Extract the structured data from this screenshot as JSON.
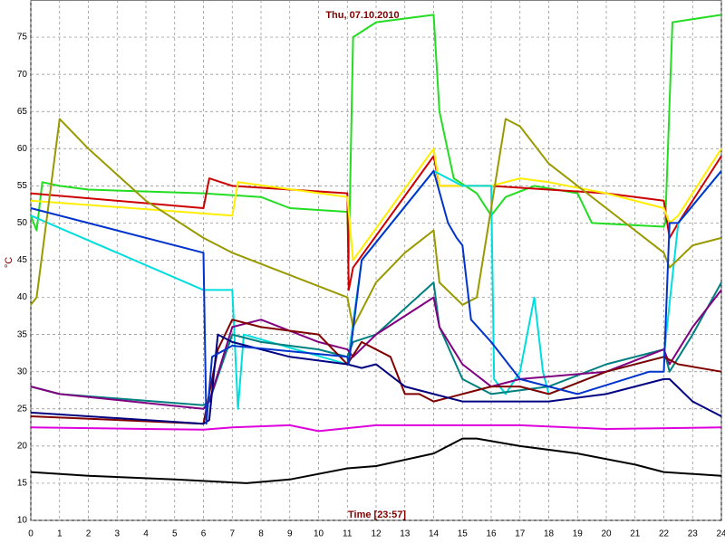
{
  "chart_data": {
    "type": "line",
    "title": "Thu, 07.10.2010",
    "x_label": "Time [23:57]",
    "y_label": "°C",
    "xlim": [
      0,
      24
    ],
    "xticks": [
      0,
      1,
      2,
      3,
      4,
      5,
      6,
      7,
      8,
      9,
      10,
      11,
      12,
      13,
      14,
      15,
      16,
      17,
      18,
      19,
      20,
      21,
      22,
      23,
      24
    ],
    "ylim": [
      10,
      80
    ],
    "yticks": [
      10,
      15,
      20,
      25,
      30,
      35,
      40,
      45,
      50,
      55,
      60,
      65,
      70,
      75
    ],
    "grid": true,
    "series": [
      {
        "color": "#22dd22",
        "x": [
          0,
          0.2,
          0.4,
          1,
          2,
          6,
          8,
          9,
          11,
          11.05,
          11.2,
          12,
          14,
          14.2,
          14.7,
          15.5,
          16,
          16.5,
          17.5,
          19,
          19.5,
          22,
          22.05,
          22.3,
          24
        ],
        "values": [
          51,
          49,
          55.5,
          55,
          54.5,
          54,
          53.5,
          52,
          51.5,
          45,
          75,
          77,
          78,
          65,
          56,
          54,
          51,
          53.5,
          55,
          54,
          50,
          49.5,
          50,
          77,
          78
        ]
      },
      {
        "color": "#cc0000",
        "x": [
          0,
          6,
          6.2,
          7,
          11,
          11.05,
          11.2,
          14,
          14.2,
          15,
          16,
          20,
          22,
          22.2,
          22.5,
          24
        ],
        "values": [
          54,
          52,
          56,
          55,
          54,
          41,
          44,
          59,
          55,
          55,
          55,
          54,
          53,
          48,
          50,
          59
        ]
      },
      {
        "color": "#ffee00",
        "x": [
          0,
          7,
          7.2,
          11,
          11.2,
          14,
          14.2,
          16,
          17,
          18,
          20,
          22,
          22.2,
          22.5,
          24
        ],
        "values": [
          53,
          51,
          55.5,
          53.5,
          45,
          60,
          55,
          55,
          56,
          55.5,
          54,
          52,
          50,
          51,
          60
        ]
      },
      {
        "color": "#00dddd",
        "x": [
          0,
          6,
          7,
          7.2,
          7.4,
          11,
          11.5,
          14,
          15,
          16,
          16.1,
          16.5,
          17,
          17.5,
          17.8,
          18,
          20,
          22,
          22.5,
          24
        ],
        "values": [
          51,
          41,
          41,
          25,
          35,
          31,
          45,
          57,
          55,
          55,
          29,
          27,
          30,
          40,
          30,
          27,
          30,
          32,
          50,
          57
        ]
      },
      {
        "color": "#999900",
        "x": [
          0,
          0.2,
          1,
          2,
          4,
          6,
          7,
          9,
          11,
          11.2,
          12,
          13,
          14,
          14.2,
          15,
          15.5,
          16,
          16.5,
          17,
          18,
          20,
          22,
          22.2,
          23,
          24
        ],
        "values": [
          39,
          40,
          64,
          60,
          53,
          48,
          46,
          43,
          40,
          36,
          42,
          46,
          49,
          42,
          39,
          40,
          52,
          64,
          63,
          58,
          52,
          46,
          44,
          47,
          48
        ]
      },
      {
        "color": "#008080",
        "x": [
          0,
          1,
          6,
          6.2,
          7,
          8,
          10,
          11,
          11.2,
          12,
          14,
          14.2,
          15,
          16,
          18,
          20,
          22,
          22.2,
          23,
          24
        ],
        "values": [
          28,
          27,
          25.5,
          26,
          35,
          34,
          33,
          32,
          34,
          35,
          42,
          36,
          29,
          27,
          28,
          31,
          33,
          30,
          35,
          42
        ]
      },
      {
        "color": "#800080",
        "x": [
          0,
          1,
          6,
          6.2,
          7,
          8,
          10,
          11,
          11.2,
          12,
          14,
          14.2,
          15,
          16,
          17,
          20,
          22,
          22.2,
          23,
          24
        ],
        "values": [
          28,
          27,
          25,
          26,
          36,
          37,
          34,
          33,
          32,
          35,
          40,
          36,
          31,
          28,
          29,
          30,
          33,
          31,
          36,
          41
        ]
      },
      {
        "color": "#800000",
        "x": [
          0,
          6,
          6.5,
          7,
          8,
          10,
          11,
          11.5,
          12.5,
          13,
          13.5,
          14,
          15,
          16,
          17,
          18,
          20,
          22,
          22.5,
          24
        ],
        "values": [
          24,
          23,
          33,
          37,
          36,
          35,
          31,
          34,
          32,
          27,
          27,
          26,
          27,
          28,
          28,
          27,
          30,
          32,
          31,
          30
        ]
      },
      {
        "color": "#000080",
        "x": [
          0,
          6,
          6.2,
          6.5,
          7,
          9,
          11,
          11.5,
          12,
          13,
          14,
          15,
          16,
          18,
          20,
          22,
          22.2,
          23,
          24
        ],
        "values": [
          24.5,
          23,
          23.5,
          35,
          34,
          32,
          31,
          30.5,
          31,
          28,
          27,
          26,
          26,
          26,
          27,
          29,
          29,
          26,
          24
        ]
      },
      {
        "color": "#0033cc",
        "x": [
          0,
          6,
          6.1,
          6.3,
          7,
          11,
          11.05,
          11.5,
          14,
          14.5,
          14.8,
          15,
          15.3,
          16,
          17,
          19,
          21.5,
          22,
          22.2,
          22.5,
          24
        ],
        "values": [
          52,
          46,
          23,
          32,
          33.5,
          32,
          31,
          45,
          57,
          50,
          48,
          47,
          37,
          34,
          29,
          27,
          30,
          30,
          50,
          50,
          57
        ]
      },
      {
        "color": "#000000",
        "x": [
          0,
          2,
          5,
          7.5,
          9,
          11,
          12,
          14,
          15,
          15.5,
          17,
          19,
          21,
          22,
          24
        ],
        "values": [
          16.5,
          16,
          15.5,
          15,
          15.5,
          17,
          17.3,
          19,
          21,
          21,
          20,
          19,
          17.5,
          16.5,
          16
        ]
      },
      {
        "color": "#dd00dd",
        "x": [
          0,
          4,
          6,
          7,
          9,
          10,
          12,
          14,
          17,
          20,
          24
        ],
        "values": [
          22.5,
          22.3,
          22.2,
          22.5,
          22.8,
          22,
          22.8,
          22.8,
          22.8,
          22.3,
          22.5
        ]
      }
    ]
  }
}
